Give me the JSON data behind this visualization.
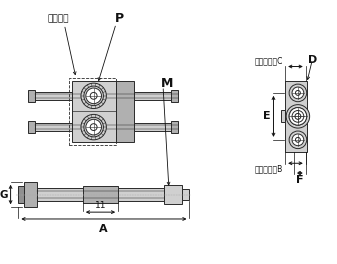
{
  "lc": "#2a2a2a",
  "fl": "#d0d0d0",
  "fm": "#b0b0b0",
  "fd": "#909090",
  "dc": "#111111",
  "label_table": "テーブル",
  "label_P": "P",
  "label_M": "M",
  "label_A": "A",
  "label_G": "G",
  "label_11": "11",
  "label_B": "六角穴対辺B",
  "label_C": "六角穴対辺C",
  "label_D": "D",
  "label_E": "E",
  "label_F": "F"
}
